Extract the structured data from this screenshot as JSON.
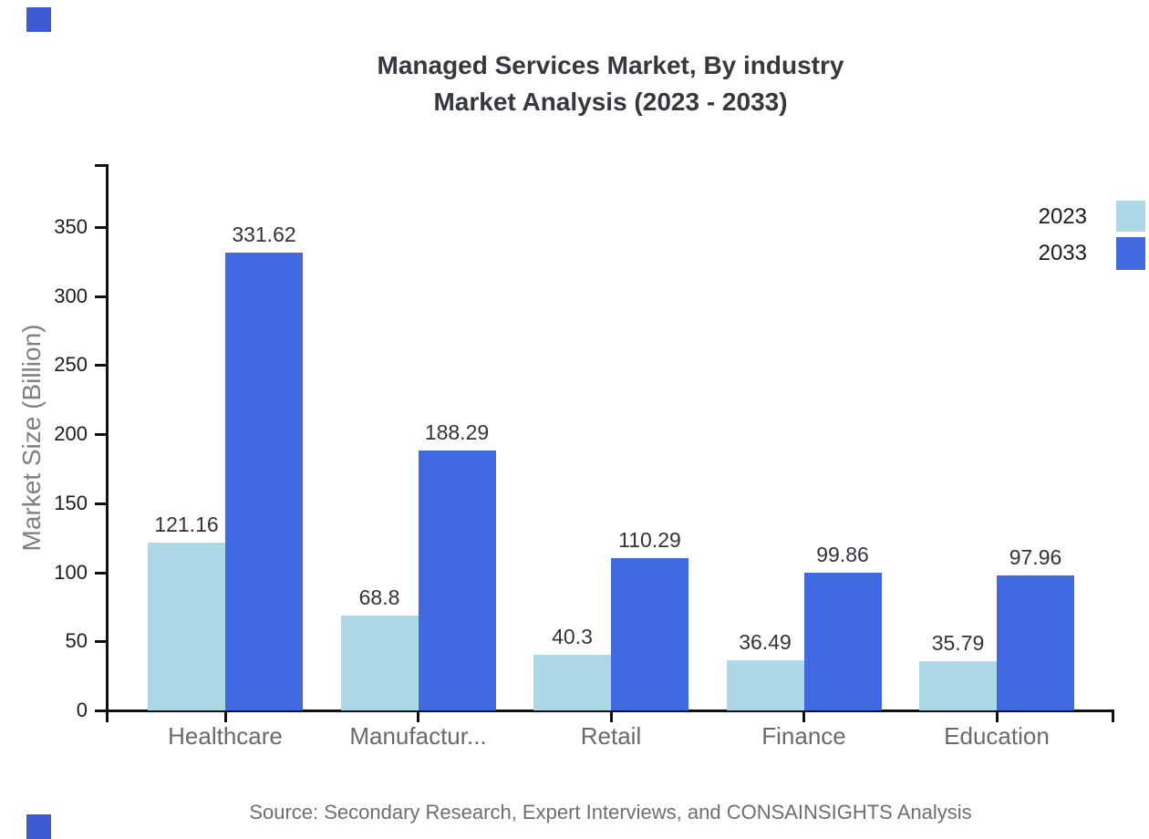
{
  "title": {
    "line1": "Managed Services Market, By industry",
    "line2": "Market Analysis (2023 - 2033)"
  },
  "legend": {
    "items": [
      {
        "label": "2023",
        "color": "#ADD8E6"
      },
      {
        "label": "2033",
        "color": "#4169E1"
      }
    ]
  },
  "source": {
    "text": "Source: Secondary Research, Expert Interviews, and CONSAINSIGHTS Analysis"
  },
  "colors": {
    "axis": "#111111",
    "series_2023": "#ADD8E6",
    "series_2033": "#4169E1",
    "corner_marker": "#3d5bd5",
    "title_text": "#35383c",
    "category_text": "#66696e",
    "value_text": "#303438",
    "ytick_text": "#1d1d1d",
    "ylabel_text": "#7e8184",
    "source_text": "#6e6e6e"
  },
  "chart_data": {
    "type": "bar",
    "title": "Managed Services Market, By industry Market Analysis (2023 - 2033)",
    "categories": [
      "Healthcare",
      "Manufactur...",
      "Retail",
      "Finance",
      "Education"
    ],
    "series": [
      {
        "name": "2023",
        "color": "#ADD8E6",
        "values": [
          121.16,
          68.8,
          40.3,
          36.49,
          35.79
        ]
      },
      {
        "name": "2033",
        "color": "#4169E1",
        "values": [
          331.62,
          188.29,
          110.29,
          99.86,
          97.96
        ]
      }
    ],
    "xlabel": "",
    "ylabel": "Market Size (Billion)",
    "yticks": [
      0,
      50,
      100,
      150,
      200,
      250,
      300,
      350
    ],
    "ylim": [
      0,
      395
    ],
    "grid": false,
    "legend_position": "top-right",
    "value_labels": true
  }
}
